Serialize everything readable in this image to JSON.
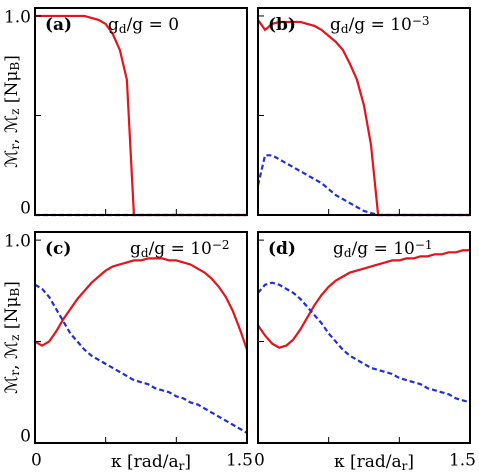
{
  "chart_data": [
    {
      "type": "line",
      "panel_label": "(a)",
      "param": [
        {
          "text": "g"
        },
        {
          "text": "d",
          "pos": "sub"
        },
        {
          "text": "/g = 0"
        }
      ],
      "ylabel": [
        {
          "text": "ℳ"
        },
        {
          "text": "r",
          "pos": "sub"
        },
        {
          "text": ", ℳ"
        },
        {
          "text": "z",
          "pos": "sub"
        },
        {
          "text": " [Nμ"
        },
        {
          "text": "B",
          "pos": "sub"
        },
        {
          "text": "]"
        }
      ],
      "x": [
        0,
        0.05,
        0.1,
        0.15,
        0.2,
        0.25,
        0.3,
        0.35,
        0.4,
        0.45,
        0.5,
        0.55,
        0.6,
        0.65,
        0.7,
        0.75,
        0.8,
        0.85,
        0.9,
        0.95,
        1.0,
        1.05,
        1.1,
        1.15,
        1.2,
        1.25,
        1.3,
        1.35,
        1.4,
        1.45,
        1.5
      ],
      "series": [
        {
          "color": "#e3141c",
          "dash": false,
          "values": [
            1.0,
            1.0,
            1.0,
            1.0,
            1.0,
            1.0,
            1.0,
            1.0,
            0.99,
            0.98,
            0.96,
            0.91,
            0.83,
            0.68,
            0,
            0,
            0,
            0,
            0,
            0,
            0,
            0,
            0,
            0,
            0,
            0,
            0,
            0,
            0,
            0,
            0
          ]
        },
        {
          "color": "#1f2fd8",
          "dash": true,
          "values": [
            0,
            0,
            0,
            0,
            0,
            0,
            0,
            0,
            0,
            0,
            0,
            0,
            0,
            0,
            0,
            0,
            0,
            0,
            0,
            0,
            0,
            0,
            0,
            0,
            0,
            0,
            0,
            0,
            0,
            0,
            0
          ]
        }
      ],
      "xlim": [
        0,
        1.5
      ],
      "ylim": [
        0,
        1.04
      ],
      "yticks": [
        0,
        {
          "value": 1,
          "label": "1.0"
        }
      ],
      "minor_yticks": [
        0.5
      ],
      "minor_xticks": [
        0.5,
        1
      ]
    },
    {
      "type": "line",
      "panel_label": "(b)",
      "param": [
        {
          "text": "g"
        },
        {
          "text": "d",
          "pos": "sub"
        },
        {
          "text": "/g = 10"
        },
        {
          "text": "−3",
          "pos": "sup"
        }
      ],
      "x": [
        0,
        0.05,
        0.1,
        0.15,
        0.2,
        0.25,
        0.3,
        0.35,
        0.4,
        0.45,
        0.5,
        0.55,
        0.6,
        0.65,
        0.7,
        0.75,
        0.8,
        0.85,
        0.9,
        0.95,
        1.0,
        1.05,
        1.1,
        1.15,
        1.2,
        1.25,
        1.3,
        1.35,
        1.4,
        1.45,
        1.5
      ],
      "series": [
        {
          "color": "#e3141c",
          "dash": false,
          "values": [
            0.98,
            0.93,
            0.96,
            0.97,
            0.97,
            0.97,
            0.97,
            0.96,
            0.95,
            0.93,
            0.9,
            0.87,
            0.83,
            0.76,
            0.68,
            0.55,
            0.35,
            0,
            0,
            0,
            0,
            0,
            0,
            0,
            0,
            0,
            0,
            0,
            0,
            0,
            0
          ]
        },
        {
          "color": "#1f2fd8",
          "dash": true,
          "values": [
            0.15,
            0.3,
            0.3,
            0.28,
            0.26,
            0.24,
            0.22,
            0.2,
            0.18,
            0.16,
            0.13,
            0.1,
            0.08,
            0.06,
            0.04,
            0.02,
            0.01,
            0,
            0,
            0,
            0,
            0,
            0,
            0,
            0,
            0,
            0,
            0,
            0,
            0,
            0
          ]
        }
      ],
      "xlim": [
        0,
        1.5
      ],
      "ylim": [
        0,
        1.04
      ],
      "minor_yticks": [
        0.5,
        1
      ],
      "minor_xticks": [
        0.5,
        1
      ]
    },
    {
      "type": "line",
      "panel_label": "(c)",
      "param": [
        {
          "text": "g"
        },
        {
          "text": "d",
          "pos": "sub"
        },
        {
          "text": "/g = 10"
        },
        {
          "text": "−2",
          "pos": "sup"
        }
      ],
      "ylabel": [
        {
          "text": "ℳ"
        },
        {
          "text": "r",
          "pos": "sub"
        },
        {
          "text": ", ℳ"
        },
        {
          "text": "z",
          "pos": "sub"
        },
        {
          "text": " [Nμ"
        },
        {
          "text": "B",
          "pos": "sub"
        },
        {
          "text": "]"
        }
      ],
      "xlabel": [
        {
          "text": "κ [rad/a"
        },
        {
          "text": "r",
          "pos": "sub"
        },
        {
          "text": "]"
        }
      ],
      "x": [
        0,
        0.05,
        0.1,
        0.15,
        0.2,
        0.25,
        0.3,
        0.35,
        0.4,
        0.45,
        0.5,
        0.55,
        0.6,
        0.65,
        0.7,
        0.75,
        0.8,
        0.85,
        0.9,
        0.95,
        1.0,
        1.05,
        1.1,
        1.15,
        1.2,
        1.25,
        1.3,
        1.35,
        1.4,
        1.45,
        1.5
      ],
      "series": [
        {
          "color": "#e3141c",
          "dash": false,
          "values": [
            0.5,
            0.48,
            0.5,
            0.55,
            0.61,
            0.66,
            0.71,
            0.75,
            0.79,
            0.82,
            0.85,
            0.87,
            0.88,
            0.89,
            0.9,
            0.9,
            0.91,
            0.91,
            0.91,
            0.9,
            0.9,
            0.89,
            0.88,
            0.86,
            0.84,
            0.81,
            0.77,
            0.72,
            0.65,
            0.56,
            0.46
          ]
        },
        {
          "color": "#1f2fd8",
          "dash": true,
          "values": [
            0.78,
            0.76,
            0.72,
            0.66,
            0.6,
            0.54,
            0.5,
            0.46,
            0.43,
            0.41,
            0.39,
            0.37,
            0.35,
            0.33,
            0.31,
            0.3,
            0.29,
            0.27,
            0.26,
            0.25,
            0.23,
            0.22,
            0.2,
            0.19,
            0.17,
            0.15,
            0.13,
            0.11,
            0.09,
            0.07,
            0.05
          ]
        }
      ],
      "xlim": [
        0,
        1.5
      ],
      "ylim": [
        0,
        1.04
      ],
      "yticks": [
        0,
        {
          "value": 1,
          "label": "1.0"
        }
      ],
      "minor_yticks": [
        0.5
      ],
      "xticks": [
        0,
        1.5
      ],
      "minor_xticks": [
        0.5,
        1
      ]
    },
    {
      "type": "line",
      "panel_label": "(d)",
      "param": [
        {
          "text": "g"
        },
        {
          "text": "d",
          "pos": "sub"
        },
        {
          "text": "/g = 10"
        },
        {
          "text": "−1",
          "pos": "sup"
        }
      ],
      "xlabel": [
        {
          "text": "κ [rad/a"
        },
        {
          "text": "r",
          "pos": "sub"
        },
        {
          "text": "]"
        }
      ],
      "x": [
        0,
        0.05,
        0.1,
        0.15,
        0.2,
        0.25,
        0.3,
        0.35,
        0.4,
        0.45,
        0.5,
        0.55,
        0.6,
        0.65,
        0.7,
        0.75,
        0.8,
        0.85,
        0.9,
        0.95,
        1.0,
        1.05,
        1.1,
        1.15,
        1.2,
        1.25,
        1.3,
        1.35,
        1.4,
        1.45,
        1.5
      ],
      "series": [
        {
          "color": "#e3141c",
          "dash": false,
          "values": [
            0.58,
            0.53,
            0.49,
            0.47,
            0.48,
            0.51,
            0.56,
            0.62,
            0.68,
            0.73,
            0.77,
            0.8,
            0.82,
            0.84,
            0.85,
            0.86,
            0.87,
            0.88,
            0.89,
            0.9,
            0.9,
            0.91,
            0.91,
            0.92,
            0.92,
            0.93,
            0.93,
            0.94,
            0.94,
            0.95,
            0.95
          ]
        },
        {
          "color": "#1f2fd8",
          "dash": true,
          "values": [
            0.74,
            0.78,
            0.79,
            0.78,
            0.76,
            0.74,
            0.71,
            0.67,
            0.63,
            0.59,
            0.54,
            0.5,
            0.46,
            0.43,
            0.41,
            0.39,
            0.37,
            0.36,
            0.35,
            0.34,
            0.32,
            0.31,
            0.3,
            0.29,
            0.27,
            0.26,
            0.25,
            0.24,
            0.22,
            0.21,
            0.2
          ]
        }
      ],
      "xlim": [
        0,
        1.5
      ],
      "ylim": [
        0,
        1.04
      ],
      "minor_yticks": [
        0.5,
        1
      ],
      "xticks": [
        0,
        1.5
      ],
      "minor_xticks": [
        0.5,
        1
      ]
    }
  ]
}
